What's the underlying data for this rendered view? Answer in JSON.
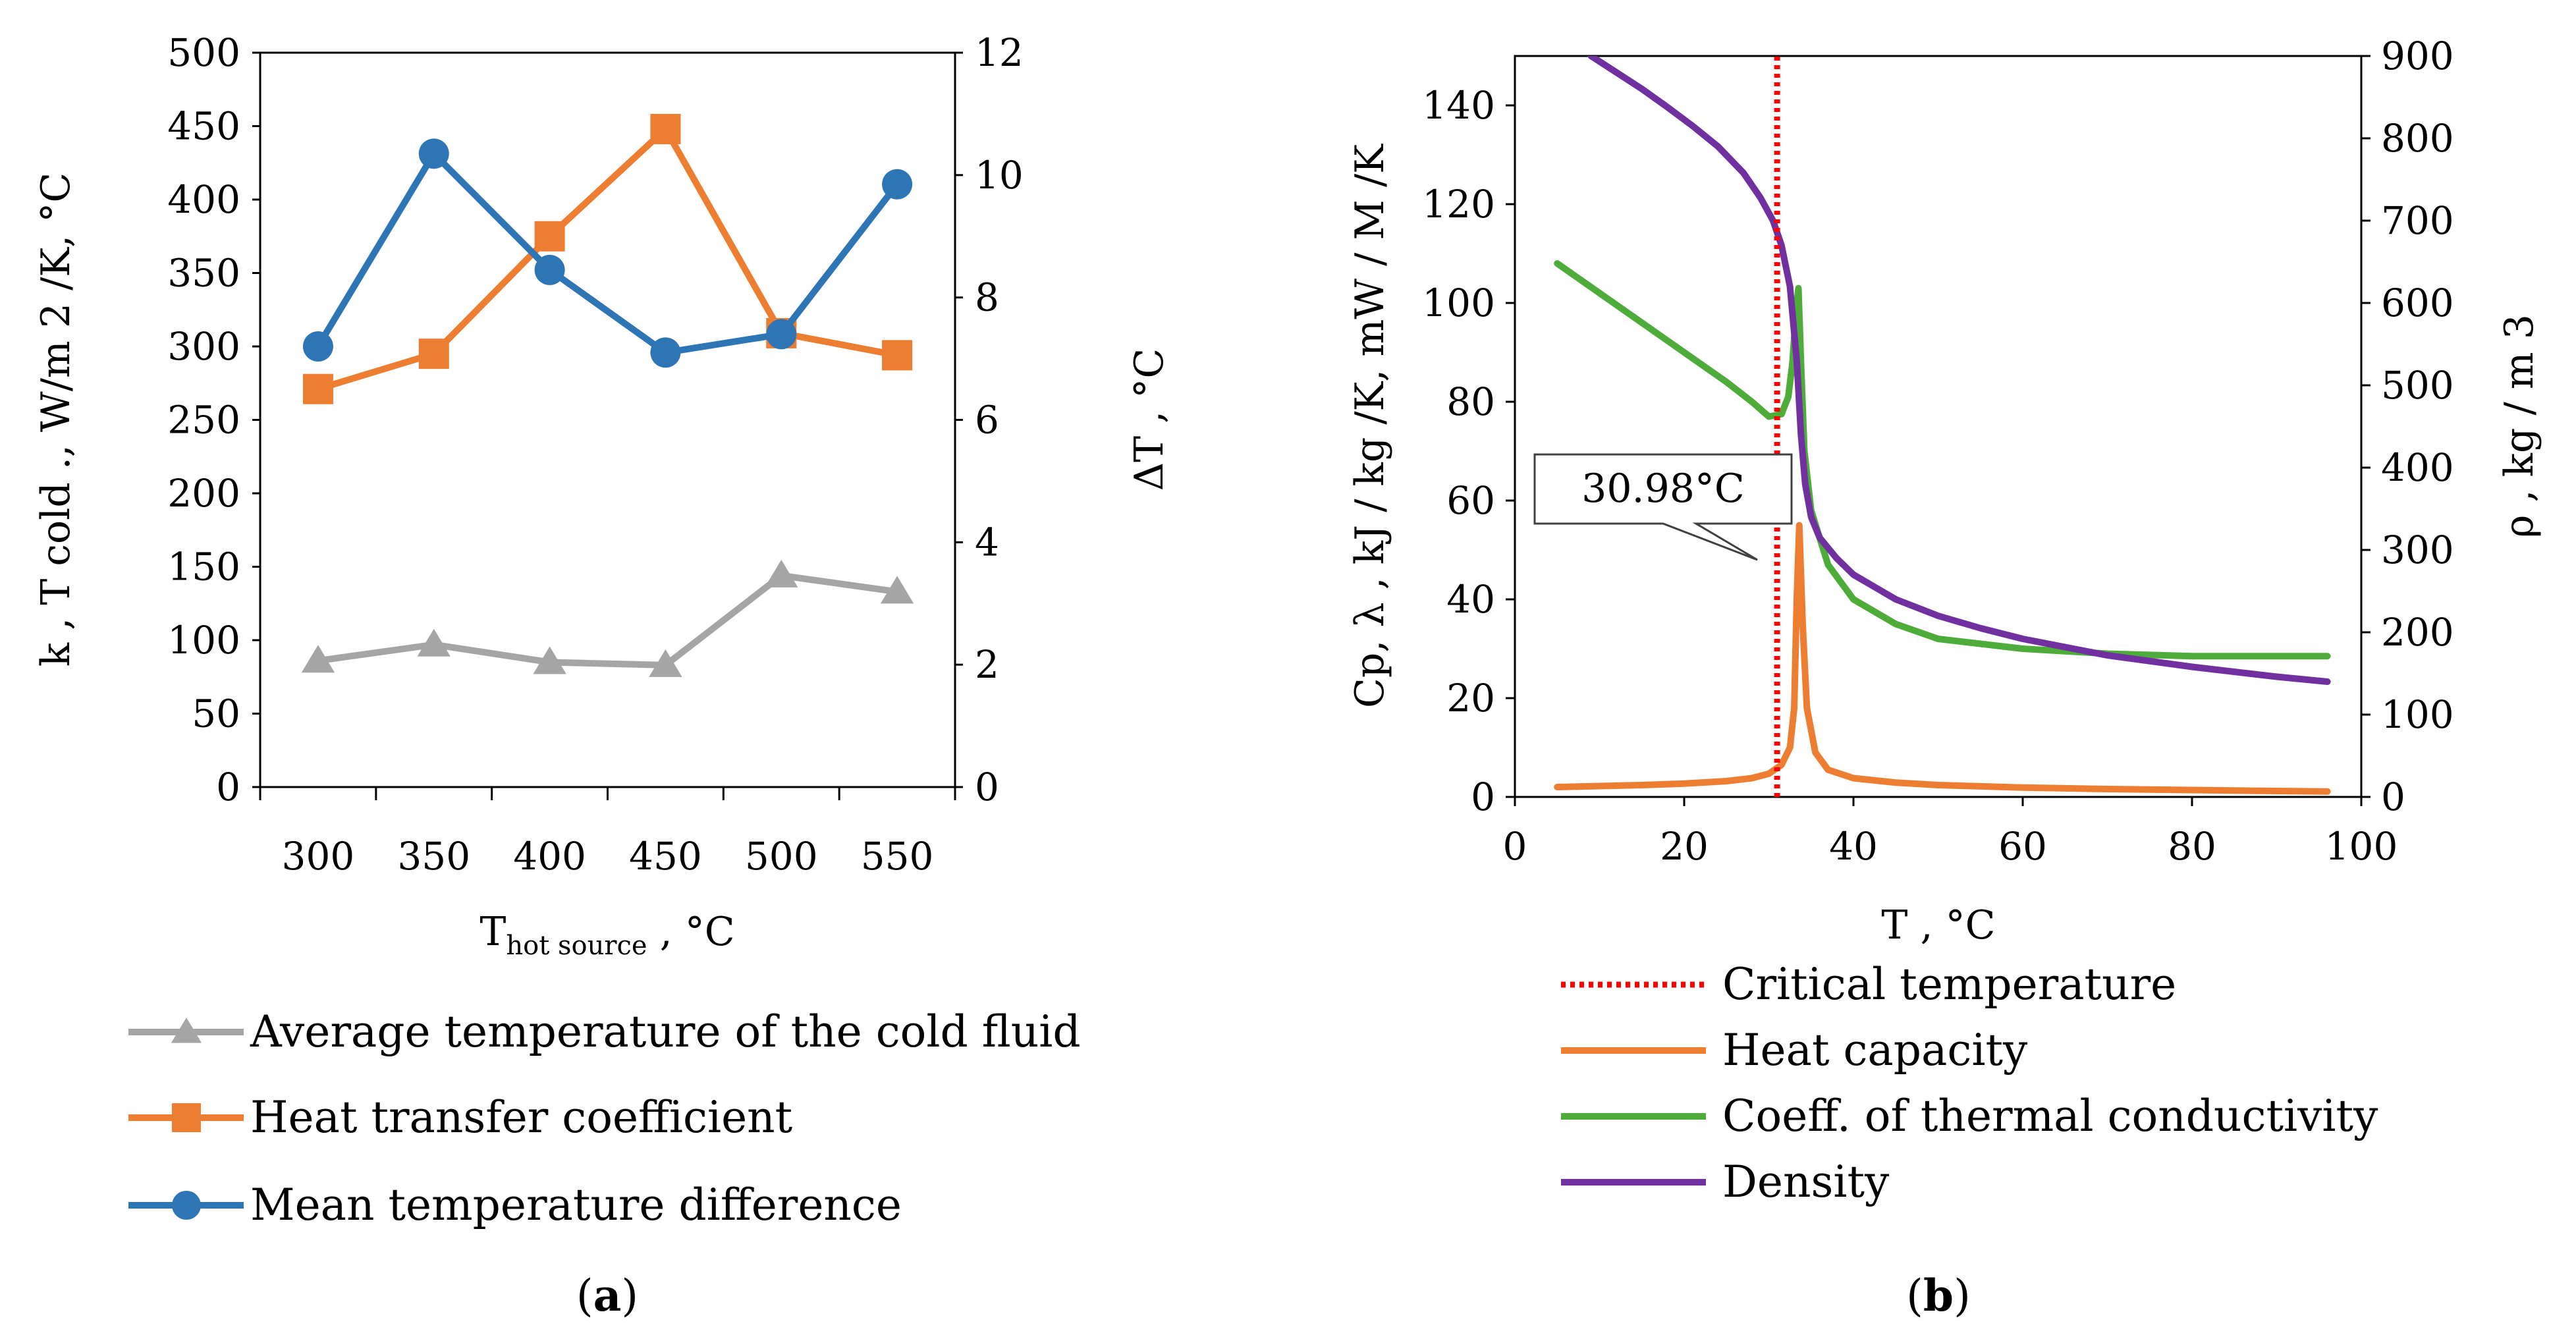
{
  "chart_data": [
    {
      "panel": "a",
      "type": "line",
      "categories": [
        "300",
        "350",
        "400",
        "450",
        "500",
        "550"
      ],
      "y_left": {
        "label": "k , T cold ., W/m 2 /K, °C",
        "range": [
          0,
          500
        ],
        "ticks": [
          "0",
          "50",
          "100",
          "150",
          "200",
          "250",
          "300",
          "350",
          "400",
          "450",
          "500"
        ]
      },
      "y_right": {
        "label": "ΔT , °C",
        "range": [
          0,
          12
        ],
        "ticks": [
          "0",
          "2",
          "4",
          "6",
          "8",
          "10",
          "12"
        ]
      },
      "x_label": {
        "main": "T",
        "sub": "hot source",
        "rest": " , °C"
      },
      "series": [
        {
          "name": "Average temperature of the cold fluid",
          "axis": "left",
          "marker": "triangle",
          "color": "#a5a5a5",
          "values": [
            86,
            97,
            85,
            83,
            144,
            133
          ]
        },
        {
          "name": "Heat transfer coefficient",
          "axis": "left",
          "marker": "square",
          "color": "#ed7d31",
          "values": [
            271,
            295,
            375,
            448,
            309,
            294
          ]
        },
        {
          "name": "Mean temperature difference",
          "axis": "right",
          "marker": "circle",
          "color": "#2e75b6",
          "values": [
            7.2,
            10.35,
            8.45,
            7.1,
            7.4,
            9.85
          ]
        }
      ],
      "caption": {
        "open": "(",
        "letter": "a",
        "close": ")"
      }
    },
    {
      "panel": "b",
      "type": "line",
      "x": {
        "label": "T , °C",
        "range": [
          0,
          100
        ],
        "ticks": [
          "0",
          "20",
          "40",
          "60",
          "80",
          "100"
        ]
      },
      "y_left": {
        "label": "Cp, λ , kJ / kg /K, mW / M /K",
        "range": [
          0,
          150
        ],
        "ticks": [
          "0",
          "20",
          "40",
          "60",
          "80",
          "100",
          "120",
          "140"
        ]
      },
      "y_right": {
        "label": "ρ , kg / m 3",
        "range": [
          0,
          900
        ],
        "ticks": [
          "0",
          "100",
          "200",
          "300",
          "400",
          "500",
          "600",
          "700",
          "800",
          "900"
        ]
      },
      "critical_temperature": 30.98,
      "annotation": "30.98°C",
      "series": [
        {
          "name": "Critical temperature",
          "style": "dotted",
          "color": "#ff0000",
          "axis": "left",
          "x": [
            30.98,
            30.98
          ],
          "y": [
            0,
            150
          ]
        },
        {
          "name": "Heat capacity",
          "style": "solid",
          "color": "#ed7d31",
          "axis": "left",
          "x": [
            5,
            10,
            15,
            20,
            25,
            28,
            30,
            31.5,
            32.5,
            33,
            33.3,
            33.6,
            34,
            34.5,
            35.5,
            37,
            40,
            45,
            50,
            60,
            70,
            80,
            90,
            96
          ],
          "y": [
            2,
            2.2,
            2.4,
            2.7,
            3.2,
            3.8,
            4.7,
            6.5,
            10,
            18,
            40,
            55,
            35,
            18,
            9,
            5.5,
            3.8,
            2.9,
            2.4,
            1.9,
            1.6,
            1.4,
            1.2,
            1.1
          ]
        },
        {
          "name": "Coeff. of thermal conductivity",
          "style": "solid",
          "color": "#4ead3a",
          "axis": "left",
          "x": [
            5,
            10,
            15,
            20,
            25,
            28,
            30,
            31.5,
            32.3,
            32.8,
            33.2,
            33.5,
            33.8,
            34.2,
            35,
            37,
            40,
            45,
            50,
            60,
            70,
            80,
            90,
            96
          ],
          "y": [
            108,
            102,
            96,
            90,
            84,
            80,
            77,
            77.5,
            81,
            88,
            98,
            103,
            88,
            70,
            58,
            47,
            40,
            35,
            32,
            30,
            29,
            28.5,
            28.5,
            28.5
          ]
        },
        {
          "name": "Density",
          "style": "solid",
          "color": "#7030a0",
          "axis": "right",
          "x": [
            9,
            12,
            15,
            18,
            21,
            24,
            27,
            29,
            30.5,
            31.5,
            32.5,
            33.3,
            33.8,
            34.3,
            35,
            36,
            38,
            40,
            45,
            50,
            55,
            60,
            70,
            80,
            90,
            96
          ],
          "y": [
            900,
            880,
            860,
            838,
            815,
            790,
            758,
            728,
            700,
            670,
            620,
            530,
            440,
            380,
            340,
            315,
            290,
            270,
            240,
            220,
            205,
            192,
            172,
            158,
            146,
            140
          ]
        }
      ],
      "caption": {
        "open": "(",
        "letter": "b",
        "close": ")"
      }
    }
  ]
}
